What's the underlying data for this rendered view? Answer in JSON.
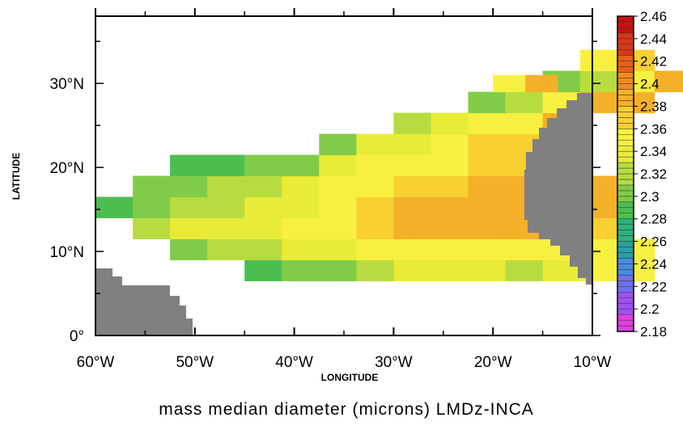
{
  "chart_data": {
    "type": "heatmap",
    "title": "mass median diameter (microns) LMDz-INCA",
    "xlabel": "LONGITUDE",
    "ylabel": "LATITUDE",
    "xlim": [
      -60,
      -10
    ],
    "ylim": [
      0,
      38
    ],
    "x_ticks": [
      -60,
      -50,
      -40,
      -30,
      -20,
      -10
    ],
    "x_tick_labels": [
      "60°W",
      "50°W",
      "40°W",
      "30°W",
      "20°W",
      "10°W"
    ],
    "y_ticks": [
      0,
      10,
      20,
      30
    ],
    "y_tick_labels": [
      "0°",
      "10°N",
      "20°N",
      "30°N"
    ],
    "grid": false,
    "colorbar": {
      "min": 2.18,
      "max": 2.46,
      "step": 0.02,
      "labels": [
        "2.46",
        "2.44",
        "2.42",
        "2.4",
        "2.38",
        "2.36",
        "2.34",
        "2.32",
        "2.3",
        "2.28",
        "2.26",
        "2.24",
        "2.22",
        "2.2",
        "2.18"
      ],
      "colors": [
        "#e040e0",
        "#a050f0",
        "#7070f0",
        "#4a8ae0",
        "#2aa0a8",
        "#2cb27a",
        "#4cbe50",
        "#80cc48",
        "#b8dc40",
        "#e8ec38",
        "#f8f040",
        "#f8d030",
        "#f4b028",
        "#f08c20",
        "#e86018",
        "#d83818",
        "#c81010"
      ]
    },
    "cell_grid": {
      "lon_start": -60,
      "lon_step": 3.75,
      "lat_start": 6.5,
      "lat_step": 2.5,
      "rows": [
        {
          "row": 0,
          "first_col": 4,
          "values": [
            2.29,
            2.305,
            2.31,
            2.315,
            2.33,
            2.33,
            2.33,
            2.325,
            2.335,
            2.345,
            2.345
          ]
        },
        {
          "row": 1,
          "first_col": 2,
          "values": [
            2.31,
            2.32,
            2.325,
            2.33,
            2.34,
            2.345,
            2.345,
            2.35,
            2.35,
            2.35,
            2.35,
            2.35,
            2.345
          ]
        },
        {
          "row": 2,
          "first_col": 1,
          "values": [
            2.32,
            2.33,
            2.335,
            2.34,
            2.345,
            2.36,
            2.37,
            2.38,
            2.385,
            2.38,
            2.385,
            2.38,
            2.375
          ]
        },
        {
          "row": 3,
          "first_col": 0,
          "values": [
            2.29,
            2.31,
            2.32,
            2.325,
            2.33,
            2.34,
            2.35,
            2.37,
            2.38,
            2.385,
            2.385,
            2.385,
            2.39,
            2.385
          ]
        },
        {
          "row": 4,
          "first_col": 1,
          "values": [
            2.3,
            2.31,
            2.315,
            2.32,
            2.33,
            2.345,
            2.36,
            2.37,
            2.37,
            2.38,
            2.38,
            2.38,
            2.38
          ]
        },
        {
          "row": 5,
          "first_col": 2,
          "values": [
            2.28,
            2.29,
            2.3,
            2.31,
            2.33,
            2.345,
            2.355,
            2.36,
            2.365,
            2.37,
            2.375
          ]
        },
        {
          "row": 6,
          "first_col": 6,
          "values": [
            2.31,
            2.33,
            2.34,
            2.35,
            2.37,
            2.375
          ]
        },
        {
          "row": 7,
          "first_col": 8,
          "values": [
            2.32,
            2.33,
            2.345,
            2.36,
            2.38
          ]
        },
        {
          "row": 8,
          "first_col": 10,
          "values": [
            2.3,
            2.32,
            2.35,
            2.38,
            2.39
          ]
        },
        {
          "row": 9,
          "first_col": 12,
          "values": [
            2.3,
            2.325,
            2.36,
            2.38
          ]
        },
        {
          "row": 10,
          "first_col": 13,
          "values": [
            2.35,
            2.37
          ]
        }
      ],
      "top_block": {
        "lon_start": -20,
        "lon_end": -13.5,
        "lat_start": 29,
        "lat_end": 31,
        "values": [
          2.36,
          2.38
        ]
      }
    },
    "land_masks": [
      {
        "name": "south-america",
        "color": "#808080"
      },
      {
        "name": "africa",
        "color": "#808080"
      }
    ]
  }
}
